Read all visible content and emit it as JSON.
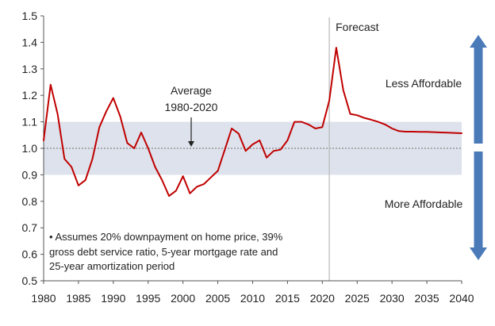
{
  "chart_data": {
    "type": "line",
    "x": [
      1980,
      1981,
      1982,
      1983,
      1984,
      1985,
      1986,
      1987,
      1988,
      1989,
      1990,
      1991,
      1992,
      1993,
      1994,
      1995,
      1996,
      1997,
      1998,
      1999,
      2000,
      2001,
      2002,
      2003,
      2004,
      2005,
      2006,
      2007,
      2008,
      2009,
      2010,
      2011,
      2012,
      2013,
      2014,
      2015,
      2016,
      2017,
      2018,
      2019,
      2020,
      2021,
      2022,
      2023,
      2024,
      2025,
      2026,
      2027,
      2028,
      2029,
      2030,
      2031,
      2032,
      2033,
      2034,
      2035,
      2036,
      2037,
      2038,
      2039,
      2040
    ],
    "series": [
      {
        "values": [
          1.03,
          1.24,
          1.13,
          0.96,
          0.93,
          0.86,
          0.88,
          0.96,
          1.08,
          1.14,
          1.19,
          1.12,
          1.02,
          1.0,
          1.06,
          1.0,
          0.93,
          0.88,
          0.82,
          0.84,
          0.895,
          0.83,
          0.855,
          0.865,
          0.89,
          0.915,
          0.995,
          1.075,
          1.055,
          0.99,
          1.015,
          1.03,
          0.965,
          0.99,
          0.995,
          1.03,
          1.1,
          1.1,
          1.09,
          1.075,
          1.08,
          1.18,
          1.38,
          1.22,
          1.13,
          1.125,
          1.115,
          1.108,
          1.1,
          1.09,
          1.075,
          1.065,
          1.063,
          1.063,
          1.062,
          1.062,
          1.061,
          1.06,
          1.059,
          1.058,
          1.057
        ],
        "color": "#c00000"
      }
    ],
    "average_value": 1.0,
    "average_label": [
      "Average",
      "1980-2020"
    ],
    "band": [
      0.9,
      1.1
    ],
    "forecast_start": 2021,
    "forecast_label": "Forecast",
    "xlim": [
      1980,
      2040
    ],
    "ylim": [
      0.5,
      1.5
    ],
    "xticks": [
      "1980",
      "1985",
      "1990",
      "1995",
      "2000",
      "2005",
      "2010",
      "2015",
      "2020",
      "2025",
      "2030",
      "2035",
      "2040"
    ],
    "yticks": [
      "0.5",
      "0.6",
      "0.7",
      "0.8",
      "0.9",
      "1.0",
      "1.1",
      "1.2",
      "1.3",
      "1.4",
      "1.5"
    ],
    "less_affordable_label": "Less Affordable",
    "more_affordable_label": "More Affordable",
    "footnote": [
      "• Assumes 20% downpayment on home price, 39%",
      "gross debt service ratio, 5-year mortgage rate and",
      "25-year amortization period"
    ],
    "colors": {
      "line": "#c00000",
      "band": "#dde2ec",
      "arrow": "#4a7ab8",
      "average_line": "#888888",
      "forecast_line": "#b8b8b8",
      "axis": "#555555"
    }
  }
}
